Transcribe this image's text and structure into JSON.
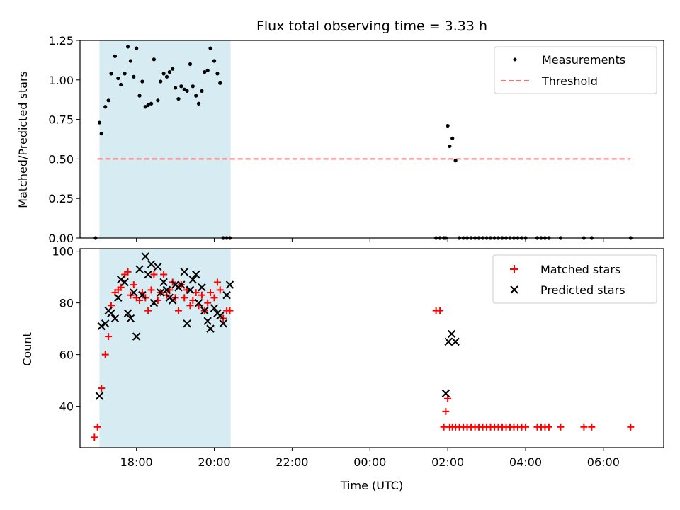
{
  "title": "Flux total observing time = 3.33 h",
  "colors": {
    "measurement": "#000000",
    "threshold": "#ff7070",
    "matched": "#ff0000",
    "predicted": "#000000",
    "shade": "#add8e6"
  },
  "chart_data": [
    {
      "type": "scatter",
      "panel": "top",
      "ylabel": "Matched/Predicted stars",
      "ylim": [
        0,
        1.25
      ],
      "yticks": [
        0.0,
        0.25,
        0.5,
        0.75,
        1.0,
        1.25
      ],
      "ytick_labels": [
        "0.00",
        "0.25",
        "0.50",
        "0.75",
        "1.00",
        "1.25"
      ],
      "xlim_hours": [
        16.55,
        31.55
      ],
      "shaded_span_hours": [
        17.05,
        20.42
      ],
      "legend": "top-right",
      "legend_entries": [
        "Measurements",
        "Threshold"
      ],
      "grid": false,
      "threshold": {
        "name": "Threshold",
        "y": 0.5,
        "x": [
          17.0,
          30.7
        ]
      },
      "series": [
        {
          "name": "Measurements",
          "x": [
            16.95,
            17.05,
            17.1,
            17.2,
            17.28,
            17.35,
            17.45,
            17.53,
            17.6,
            17.7,
            17.78,
            17.85,
            17.93,
            18.0,
            18.08,
            18.15,
            18.23,
            18.3,
            18.38,
            18.45,
            18.55,
            18.62,
            18.7,
            18.78,
            18.85,
            18.93,
            19.0,
            19.08,
            19.15,
            19.23,
            19.3,
            19.38,
            19.45,
            19.53,
            19.6,
            19.68,
            19.75,
            19.83,
            19.9,
            20.0,
            20.08,
            20.15,
            20.23,
            20.32,
            20.4,
            25.7,
            25.8,
            25.9,
            25.95,
            26.0,
            26.05,
            26.12,
            26.2,
            26.3,
            26.4,
            26.5,
            26.6,
            26.7,
            26.8,
            26.9,
            27.0,
            27.1,
            27.2,
            27.3,
            27.4,
            27.5,
            27.6,
            27.7,
            27.8,
            27.9,
            28.0,
            28.3,
            28.4,
            28.5,
            28.6,
            28.9,
            29.5,
            29.7,
            30.7
          ],
          "y": [
            0.0,
            0.73,
            0.66,
            0.83,
            0.87,
            1.04,
            1.15,
            1.01,
            0.97,
            1.04,
            1.21,
            1.12,
            1.02,
            1.2,
            0.9,
            0.99,
            0.83,
            0.84,
            0.85,
            1.13,
            0.87,
            0.99,
            1.04,
            1.02,
            1.05,
            1.07,
            0.95,
            0.88,
            0.96,
            0.94,
            0.93,
            1.1,
            0.96,
            0.9,
            0.85,
            0.93,
            1.05,
            1.06,
            1.2,
            1.12,
            1.04,
            0.98,
            0.0,
            0.0,
            0.0,
            0.0,
            0.0,
            0.0,
            0.0,
            0.71,
            0.58,
            0.63,
            0.49,
            0.0,
            0.0,
            0.0,
            0.0,
            0.0,
            0.0,
            0.0,
            0.0,
            0.0,
            0.0,
            0.0,
            0.0,
            0.0,
            0.0,
            0.0,
            0.0,
            0.0,
            0.0,
            0.0,
            0.0,
            0.0,
            0.0,
            0.0,
            0.0,
            0.0,
            0.0
          ]
        }
      ]
    },
    {
      "type": "scatter",
      "panel": "bottom",
      "ylabel": "Count",
      "xlabel": "Time (UTC)",
      "ylim": [
        24,
        101
      ],
      "yticks": [
        40,
        60,
        80,
        100
      ],
      "ytick_labels": [
        "40",
        "60",
        "80",
        "100"
      ],
      "xlim_hours": [
        16.55,
        31.55
      ],
      "xticks_hours": [
        18,
        20,
        22,
        24,
        26,
        28,
        30
      ],
      "xtick_labels": [
        "18:00",
        "20:00",
        "22:00",
        "00:00",
        "02:00",
        "04:00",
        "06:00"
      ],
      "shaded_span_hours": [
        17.05,
        20.42
      ],
      "legend": "top-right",
      "legend_entries": [
        "Matched stars",
        "Predicted stars"
      ],
      "grid": false,
      "series": [
        {
          "name": "Matched stars",
          "marker": "plus",
          "x": [
            16.92,
            17.0,
            17.1,
            17.2,
            17.28,
            17.35,
            17.45,
            17.53,
            17.6,
            17.7,
            17.78,
            17.85,
            17.93,
            18.0,
            18.08,
            18.15,
            18.23,
            18.3,
            18.38,
            18.45,
            18.55,
            18.62,
            18.7,
            18.78,
            18.85,
            18.93,
            19.0,
            19.08,
            19.15,
            19.23,
            19.3,
            19.38,
            19.45,
            19.53,
            19.6,
            19.68,
            19.75,
            19.83,
            19.9,
            20.0,
            20.08,
            20.15,
            20.23,
            20.32,
            20.4,
            25.7,
            25.8,
            25.9,
            25.95,
            26.0,
            26.05,
            26.12,
            26.2,
            26.3,
            26.4,
            26.5,
            26.6,
            26.7,
            26.8,
            26.9,
            27.0,
            27.1,
            27.2,
            27.3,
            27.4,
            27.5,
            27.6,
            27.7,
            27.8,
            27.9,
            28.0,
            28.3,
            28.4,
            28.5,
            28.6,
            28.9,
            29.5,
            29.7,
            30.7
          ],
          "y": [
            28,
            32,
            47,
            60,
            67,
            79,
            84,
            85,
            86,
            91,
            92,
            83,
            87,
            82,
            81,
            84,
            82,
            77,
            85,
            91,
            81,
            84,
            91,
            83,
            85,
            88,
            82,
            77,
            87,
            82,
            85,
            79,
            81,
            84,
            79,
            83,
            77,
            80,
            84,
            82,
            88,
            85,
            74,
            77,
            77,
            77,
            77,
            32,
            38,
            43,
            32,
            32,
            32,
            32,
            32,
            32,
            32,
            32,
            32,
            32,
            32,
            32,
            32,
            32,
            32,
            32,
            32,
            32,
            32,
            32,
            32,
            32,
            32,
            32,
            32,
            32,
            32,
            32,
            32
          ]
        },
        {
          "name": "Predicted stars",
          "marker": "x",
          "x": [
            17.05,
            17.1,
            17.2,
            17.28,
            17.35,
            17.45,
            17.53,
            17.6,
            17.7,
            17.78,
            17.85,
            17.93,
            18.0,
            18.08,
            18.15,
            18.23,
            18.3,
            18.38,
            18.45,
            18.55,
            18.62,
            18.7,
            18.78,
            18.85,
            18.93,
            19.0,
            19.08,
            19.15,
            19.23,
            19.3,
            19.38,
            19.45,
            19.53,
            19.6,
            19.68,
            19.75,
            19.83,
            19.9,
            20.0,
            20.08,
            20.15,
            20.23,
            20.32,
            20.4,
            25.95,
            26.02,
            26.1,
            26.2
          ],
          "y": [
            44,
            71,
            72,
            77,
            76,
            74,
            82,
            89,
            88,
            76,
            74,
            84,
            67,
            93,
            83,
            98,
            91,
            95,
            80,
            94,
            84,
            88,
            85,
            82,
            81,
            87,
            86,
            87,
            92,
            72,
            85,
            89,
            91,
            80,
            86,
            77,
            73,
            70,
            78,
            76,
            75,
            72,
            83,
            87,
            45,
            65,
            68,
            65
          ]
        }
      ]
    }
  ]
}
